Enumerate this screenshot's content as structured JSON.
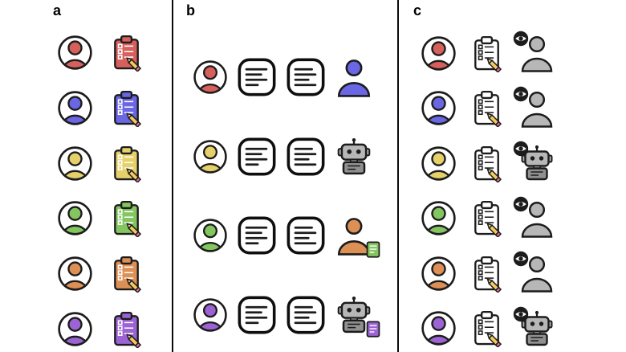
{
  "figure": {
    "background": "#ffffff",
    "outline_color": "#1c1c1c",
    "palette": [
      "#d6605c",
      "#6a66e4",
      "#e5d06a",
      "#83c55f",
      "#dd9055",
      "#9b63d3"
    ],
    "colors": {
      "robot_head": "#b7b7b7",
      "robot_body": "#909090",
      "evaluator_gray": "#b7b7b7",
      "pencil_body": "#f6c95c",
      "pencil_tip": "#f7e6b8",
      "pencil_eraser": "#ef6fa0",
      "white": "#ffffff",
      "black": "#1c1c1c"
    },
    "panels": {
      "a": {
        "label": "a",
        "rows": [
          {
            "person_color": "#d6605c",
            "clipboard_color": "#d6605c"
          },
          {
            "person_color": "#6a66e4",
            "clipboard_color": "#6a66e4"
          },
          {
            "person_color": "#e5d06a",
            "clipboard_color": "#e5d06a"
          },
          {
            "person_color": "#83c55f",
            "clipboard_color": "#83c55f"
          },
          {
            "person_color": "#dd9055",
            "clipboard_color": "#dd9055"
          },
          {
            "person_color": "#9b63d3",
            "clipboard_color": "#9b63d3"
          }
        ]
      },
      "b": {
        "label": "b",
        "rows": [
          {
            "person_color": "#d6605c",
            "responder": "person",
            "responder_color": "#6a66e4",
            "doc_color": null
          },
          {
            "person_color": "#e5d06a",
            "responder": "robot",
            "responder_color": null,
            "doc_color": null
          },
          {
            "person_color": "#83c55f",
            "responder": "person",
            "responder_color": "#dd9055",
            "doc_color": "#83c55f"
          },
          {
            "person_color": "#9b63d3",
            "responder": "robot",
            "responder_color": null,
            "doc_color": "#9b63d3"
          }
        ]
      },
      "c": {
        "label": "c",
        "rows": [
          {
            "person_color": "#d6605c",
            "evaluator": "person"
          },
          {
            "person_color": "#6a66e4",
            "evaluator": "person"
          },
          {
            "person_color": "#e5d06a",
            "evaluator": "robot"
          },
          {
            "person_color": "#83c55f",
            "evaluator": "person"
          },
          {
            "person_color": "#dd9055",
            "evaluator": "person"
          },
          {
            "person_color": "#9b63d3",
            "evaluator": "robot"
          }
        ]
      }
    },
    "icons": {
      "annotator": "person-avatar-icon",
      "annotation_sheet": "clipboard-pencil-icon",
      "message": "chat-bubble-icon",
      "human_responder": "person-icon",
      "ai_responder": "robot-icon",
      "evaluator_marker": "eye-icon",
      "context_document": "document-icon"
    }
  }
}
